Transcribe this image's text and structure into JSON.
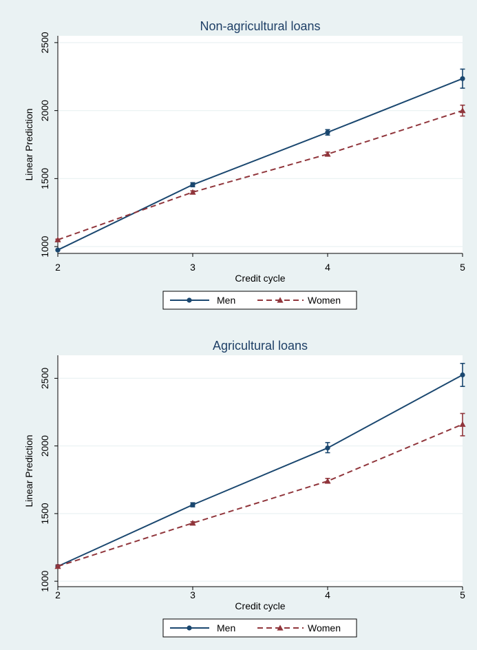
{
  "colors": {
    "background": "#eaf2f3",
    "plot_background": "#ffffff",
    "grid": "#eaf2f3",
    "men": "#1a476f",
    "women": "#90353b",
    "title": "#1e3f66",
    "legend_border": "#000000"
  },
  "chart_data": [
    {
      "type": "line",
      "title": "Non-agricultural loans",
      "xlabel": "Credit cycle",
      "ylabel": "Linear Prediction",
      "categories": [
        "2",
        "3",
        "4",
        "5"
      ],
      "x": [
        2,
        3,
        4,
        5
      ],
      "xlim": [
        2,
        5
      ],
      "ylim": [
        950,
        2550
      ],
      "yticks": [
        1000,
        1500,
        2000,
        2500
      ],
      "ytick_labels": [
        "1000",
        "1500",
        "2000",
        "2500"
      ],
      "grid": true,
      "legend": "bottom",
      "series": [
        {
          "name": "Men",
          "marker": "circle",
          "line_style": "solid",
          "values": [
            975,
            1455,
            1840,
            2235
          ],
          "ci_low": [
            970,
            1440,
            1820,
            2165
          ],
          "ci_high": [
            980,
            1470,
            1860,
            2305
          ]
        },
        {
          "name": "Women",
          "marker": "triangle",
          "line_style": "dashed",
          "values": [
            1050,
            1400,
            1680,
            2000
          ],
          "ci_low": [
            1045,
            1390,
            1665,
            1960
          ],
          "ci_high": [
            1055,
            1410,
            1695,
            2040
          ]
        }
      ]
    },
    {
      "type": "line",
      "title": "Agricultural loans",
      "xlabel": "Credit cycle",
      "ylabel": "Linear Prediction",
      "categories": [
        "2",
        "3",
        "4",
        "5"
      ],
      "x": [
        2,
        3,
        4,
        5
      ],
      "xlim": [
        2,
        5
      ],
      "ylim": [
        960,
        2670
      ],
      "yticks": [
        1000,
        1500,
        2000,
        2500
      ],
      "ytick_labels": [
        "1000",
        "1500",
        "2000",
        "2500"
      ],
      "grid": true,
      "legend": "bottom",
      "series": [
        {
          "name": "Men",
          "marker": "circle",
          "line_style": "solid",
          "values": [
            1110,
            1565,
            1985,
            2525
          ],
          "ci_low": [
            1100,
            1550,
            1950,
            2440
          ],
          "ci_high": [
            1120,
            1580,
            2025,
            2610
          ]
        },
        {
          "name": "Women",
          "marker": "triangle",
          "line_style": "dashed",
          "values": [
            1110,
            1430,
            1740,
            2160
          ],
          "ci_low": [
            1100,
            1420,
            1725,
            2075
          ],
          "ci_high": [
            1120,
            1440,
            1760,
            2240
          ]
        }
      ]
    }
  ]
}
